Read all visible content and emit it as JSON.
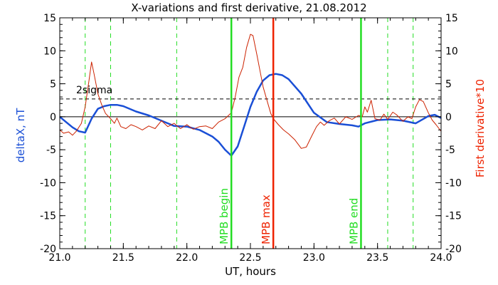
{
  "chart_data": {
    "type": "line",
    "title": "X-variations and first derivative, 21.08.2012",
    "xlabel": "UT, hours",
    "ylabel_left": "deltaX, nT",
    "ylabel_right": "First derivative*10",
    "xlim": [
      21.0,
      24.0
    ],
    "ylim": [
      -20,
      15
    ],
    "x_ticks": [
      21.0,
      21.5,
      22.0,
      22.5,
      23.0,
      23.5,
      24.0
    ],
    "x_tick_labels": [
      "21.0",
      "21.5",
      "22.0",
      "22.5",
      "23.0",
      "23.5",
      "24.0"
    ],
    "y_ticks": [
      15,
      10,
      5,
      0,
      -5,
      -10,
      -15,
      -20
    ],
    "y_tick_labels": [
      "15",
      "10",
      "5",
      "0",
      "-5",
      "-10",
      "-15",
      "-20"
    ],
    "colors": {
      "deltaX": "#1a4fd6",
      "derivative": "#cc2200",
      "mpb_bounds": "#22dd22",
      "mpb_max": "#ee2200",
      "axes": "#000000",
      "right_label": "#ee2200",
      "left_label": "#1a4fd6"
    },
    "reference_lines": [
      {
        "name": "2sigma",
        "label": "2sigma",
        "y": 2.7,
        "style": "dashed"
      },
      {
        "name": "zero",
        "label": "",
        "y": 0,
        "style": "solid"
      }
    ],
    "vertical_dashed": [
      21.2,
      21.4,
      21.92,
      23.58,
      23.78
    ],
    "markers": [
      {
        "label": "MPB begin",
        "x": 22.35,
        "color": "#22dd22"
      },
      {
        "label": "MPB max",
        "x": 22.68,
        "color": "#ee2200"
      },
      {
        "label": "MPB end",
        "x": 23.37,
        "color": "#22dd22"
      }
    ],
    "series": [
      {
        "name": "deltaX",
        "axis": "left",
        "x": [
          21.0,
          21.05,
          21.1,
          21.15,
          21.2,
          21.25,
          21.3,
          21.35,
          21.4,
          21.45,
          21.5,
          21.6,
          21.7,
          21.8,
          21.9,
          22.0,
          22.1,
          22.2,
          22.25,
          22.3,
          22.35,
          22.4,
          22.45,
          22.5,
          22.55,
          22.6,
          22.65,
          22.7,
          22.75,
          22.8,
          22.9,
          23.0,
          23.1,
          23.2,
          23.3,
          23.35,
          23.4,
          23.5,
          23.6,
          23.7,
          23.8,
          23.9,
          23.95,
          24.0
        ],
        "y": [
          0.0,
          -0.8,
          -1.6,
          -2.2,
          -2.4,
          -0.3,
          1.2,
          1.6,
          1.8,
          1.8,
          1.6,
          0.8,
          0.2,
          -0.6,
          -1.4,
          -1.5,
          -2.0,
          -3.0,
          -3.8,
          -5.0,
          -5.9,
          -4.5,
          -1.5,
          1.5,
          3.8,
          5.5,
          6.3,
          6.5,
          6.3,
          5.7,
          3.5,
          0.6,
          -0.8,
          -1.1,
          -1.3,
          -1.5,
          -1.0,
          -0.5,
          -0.4,
          -0.6,
          -1.0,
          0.1,
          0.3,
          -0.2
        ]
      },
      {
        "name": "derivative",
        "axis": "right",
        "x": [
          21.0,
          21.03,
          21.07,
          21.1,
          21.13,
          21.17,
          21.2,
          21.23,
          21.25,
          21.27,
          21.3,
          21.33,
          21.36,
          21.4,
          21.43,
          21.45,
          21.48,
          21.52,
          21.56,
          21.6,
          21.65,
          21.7,
          21.75,
          21.8,
          21.85,
          21.9,
          21.95,
          22.0,
          22.05,
          22.1,
          22.15,
          22.2,
          22.25,
          22.3,
          22.35,
          22.38,
          22.41,
          22.44,
          22.47,
          22.5,
          22.52,
          22.55,
          22.58,
          22.6,
          22.63,
          22.66,
          22.68,
          22.72,
          22.76,
          22.8,
          22.85,
          22.9,
          22.94,
          22.98,
          23.02,
          23.05,
          23.08,
          23.12,
          23.16,
          23.2,
          23.25,
          23.3,
          23.35,
          23.38,
          23.4,
          23.42,
          23.45,
          23.48,
          23.52,
          23.55,
          23.58,
          23.62,
          23.65,
          23.7,
          23.74,
          23.77,
          23.8,
          23.83,
          23.86,
          23.9,
          23.93,
          23.96,
          24.0
        ],
        "y": [
          -2.0,
          -2.5,
          -2.3,
          -2.8,
          -2.2,
          -1.0,
          1.5,
          5.5,
          8.3,
          6.5,
          3.5,
          1.8,
          0.5,
          -0.3,
          -1.0,
          -0.2,
          -1.5,
          -1.8,
          -1.2,
          -1.5,
          -2.0,
          -1.4,
          -1.8,
          -0.6,
          -1.5,
          -1.0,
          -1.8,
          -1.2,
          -1.9,
          -1.5,
          -1.4,
          -1.8,
          -0.8,
          -0.3,
          0.6,
          3.0,
          6.0,
          7.5,
          10.5,
          12.5,
          12.3,
          9.5,
          6.5,
          4.5,
          2.5,
          0.5,
          -0.3,
          -1.2,
          -2.0,
          -2.6,
          -3.5,
          -4.8,
          -4.6,
          -3.0,
          -1.5,
          -0.8,
          -1.3,
          -0.6,
          -0.2,
          -1.1,
          0.0,
          -0.4,
          0.2,
          0.0,
          1.5,
          0.7,
          2.5,
          -0.3,
          -0.5,
          0.4,
          -0.4,
          0.7,
          0.3,
          -0.7,
          0.0,
          -0.3,
          1.5,
          2.6,
          2.3,
          0.6,
          -0.5,
          -1.2,
          -2.2
        ]
      }
    ]
  }
}
